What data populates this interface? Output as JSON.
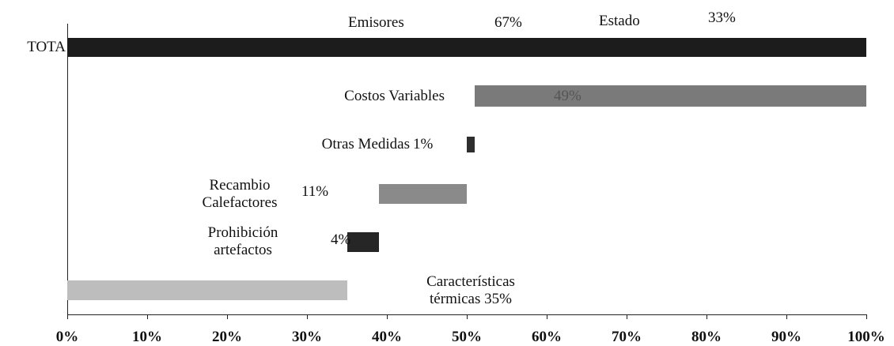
{
  "chart_data": {
    "type": "waterfall",
    "categories": [
      "TOTA",
      "Costos Variables",
      "Otras Medidas",
      "Recambio Calefactores",
      "Prohibición artefactos",
      "Características térmicas"
    ],
    "values": [
      100,
      49,
      1,
      11,
      4,
      35
    ],
    "value_labels": [
      null,
      "49%",
      "1%",
      "11%",
      "4%",
      "35%"
    ],
    "colors": [
      "#1c1c1c",
      "#7a7a7a",
      "#2e2e2e",
      "#8a8a8a",
      "#262626",
      "#bdbdbd"
    ],
    "total_index": 0,
    "xlim": [
      0,
      100
    ],
    "xticks": [
      {
        "value": 0,
        "label": "0%"
      },
      {
        "value": 10,
        "label": "10%"
      },
      {
        "value": 20,
        "label": "20%"
      },
      {
        "value": 30,
        "label": "30%"
      },
      {
        "value": 40,
        "label": "40%"
      },
      {
        "value": 50,
        "label": "50%"
      },
      {
        "value": 60,
        "label": "60%"
      },
      {
        "value": 70,
        "label": "70%"
      },
      {
        "value": 80,
        "label": "80%"
      },
      {
        "value": 90,
        "label": "90%"
      },
      {
        "value": 100,
        "label": "100%"
      }
    ],
    "annotations": [
      {
        "text": "Emisores"
      },
      {
        "text": "67%"
      },
      {
        "text": "Estado"
      },
      {
        "text": "33%"
      }
    ]
  }
}
